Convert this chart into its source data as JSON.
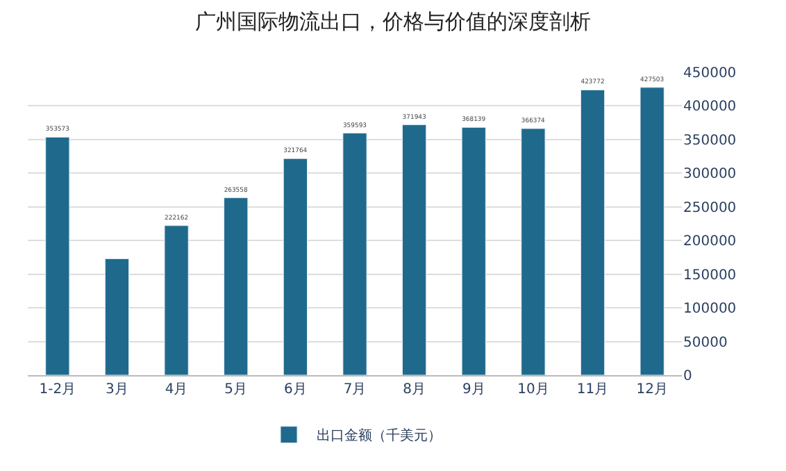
{
  "chart_data": {
    "type": "bar",
    "title": "广州国际物流出口，价格与价值的深度剖析",
    "categories": [
      "1-2月",
      "3月",
      "4月",
      "5月",
      "6月",
      "7月",
      "8月",
      "9月",
      "10月",
      "11月",
      "12月"
    ],
    "series": [
      {
        "name": "出口金额（千美元）",
        "color": "#1f6a8c",
        "values": [
          353573,
          173000,
          222162,
          263558,
          321764,
          359593,
          371943,
          368139,
          366374,
          423772,
          427503
        ],
        "value_labels": [
          "353573",
          null,
          "222162",
          "263558",
          "321764",
          "359593",
          "371943",
          "368139",
          "366374",
          "423772",
          "427503"
        ]
      }
    ],
    "ylim": [
      0,
      450000
    ],
    "yticks": [
      0,
      50000,
      100000,
      150000,
      200000,
      250000,
      300000,
      350000,
      400000,
      450000
    ],
    "grid": "y",
    "legend": "bottom"
  }
}
